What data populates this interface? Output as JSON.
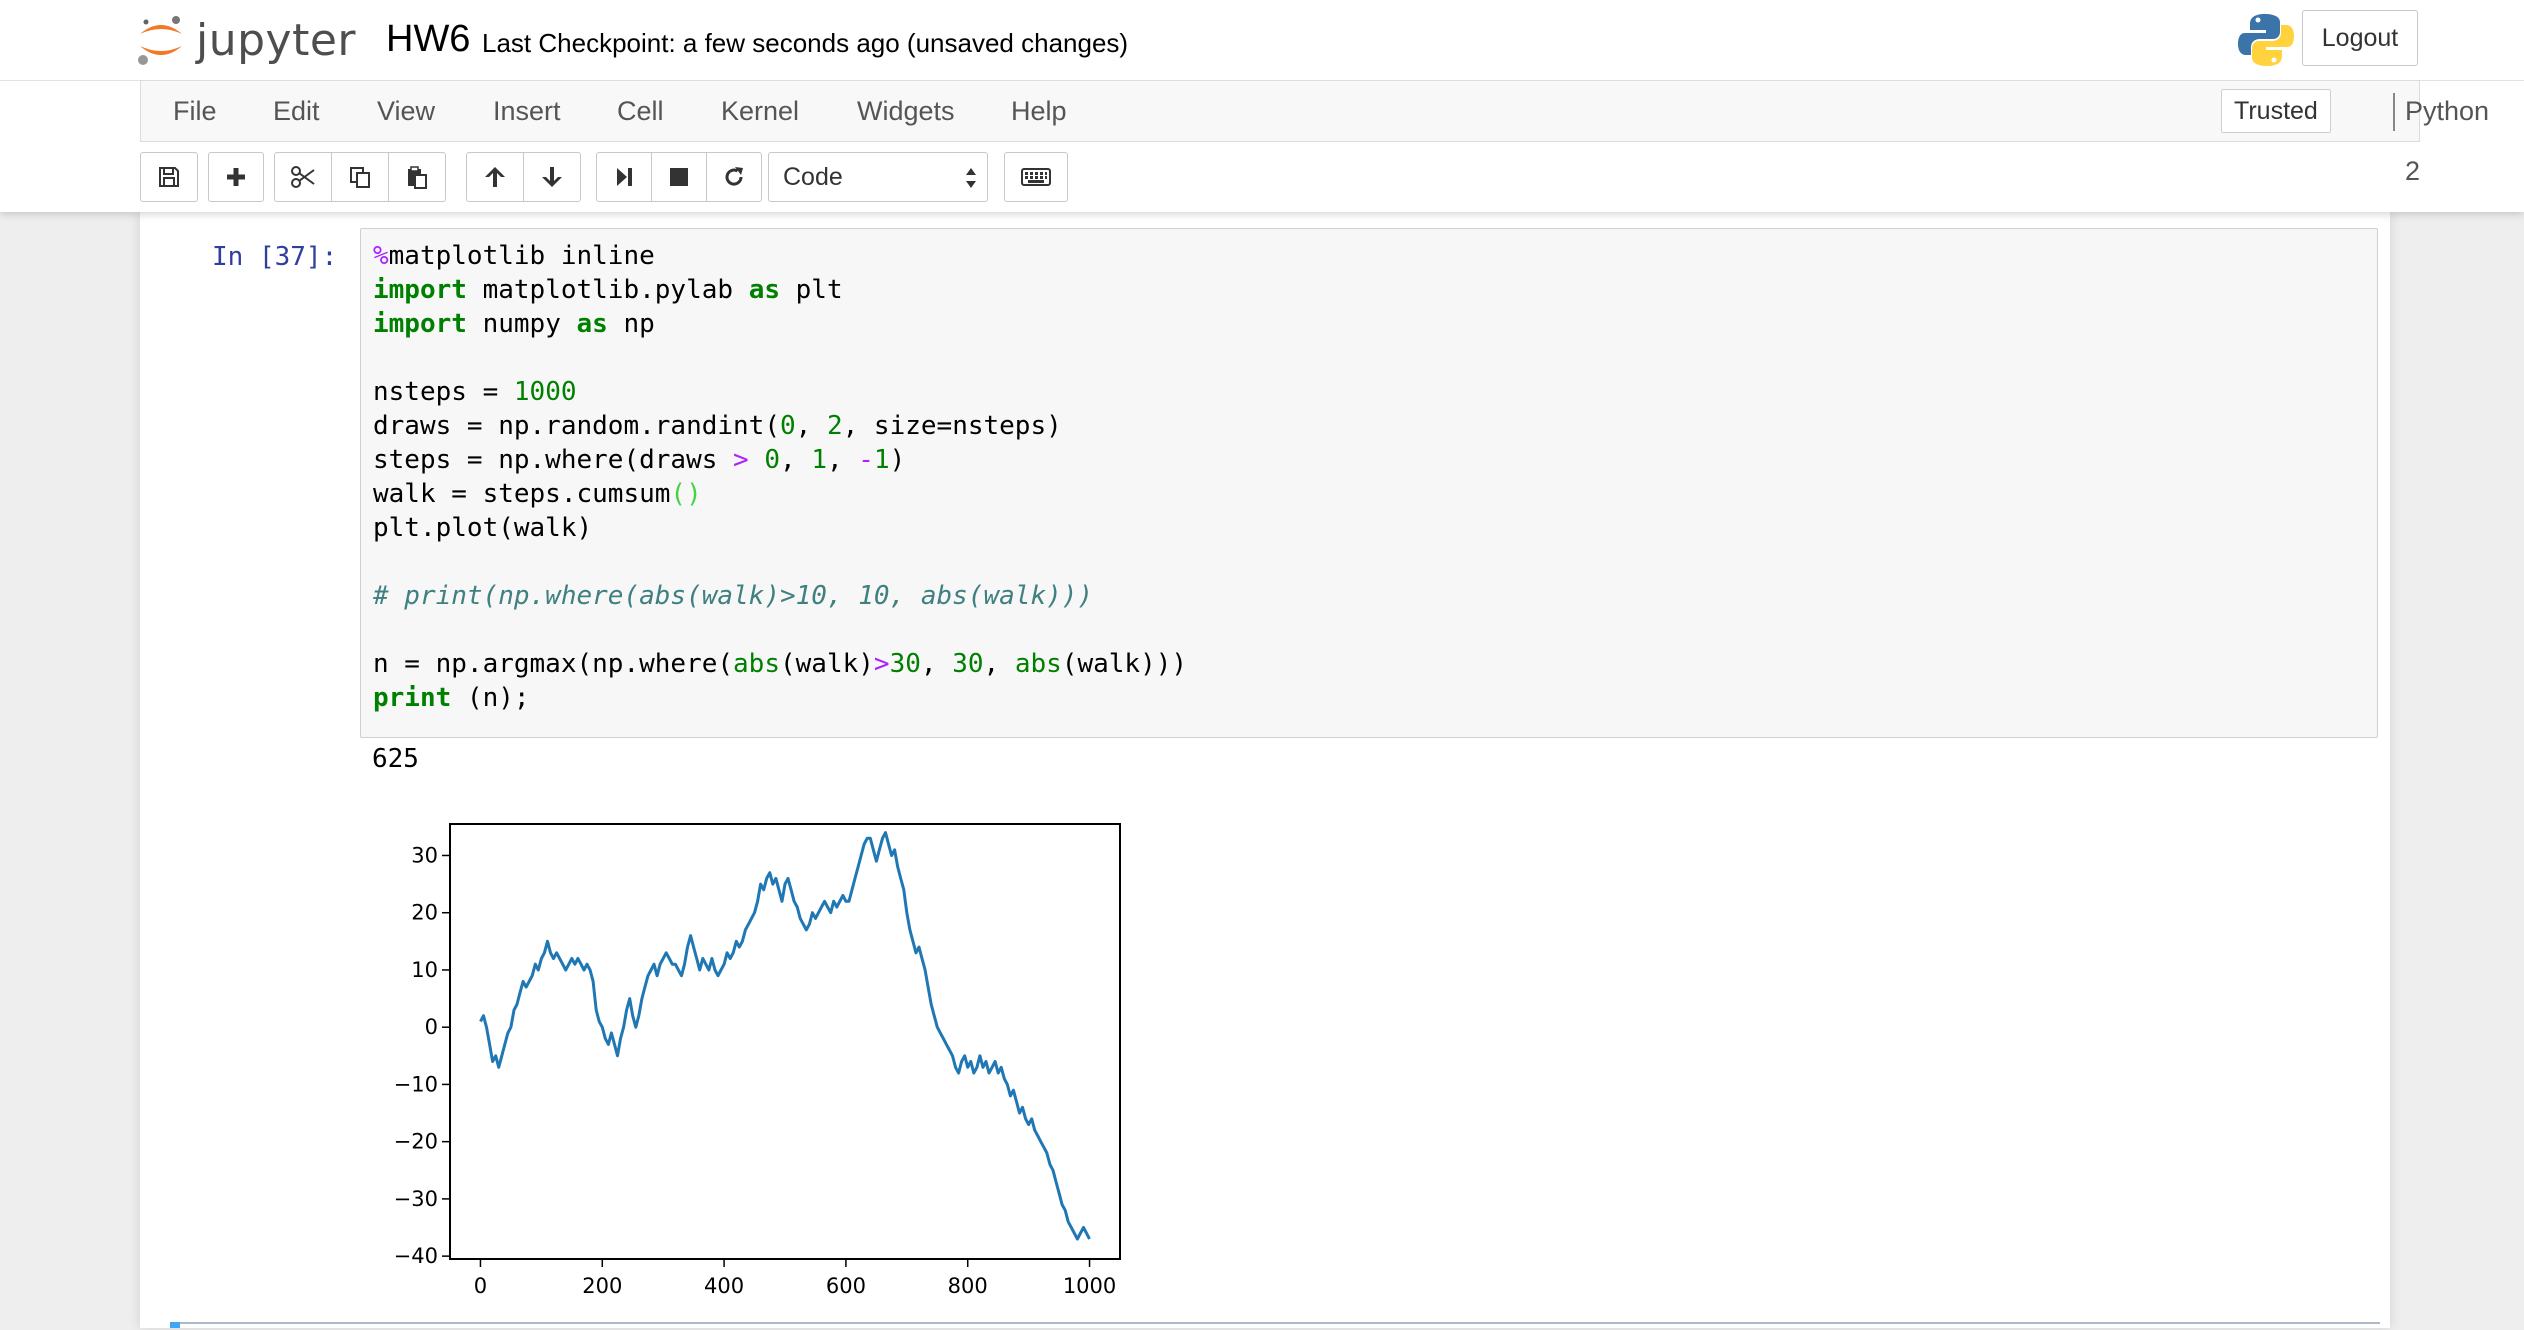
{
  "app": {
    "logo_text": "jupyter",
    "notebook_name": "HW6",
    "checkpoint": "Last Checkpoint: a few seconds ago (unsaved changes)",
    "logout_label": "Logout"
  },
  "menu": {
    "items": [
      "File",
      "Edit",
      "View",
      "Insert",
      "Cell",
      "Kernel",
      "Widgets",
      "Help"
    ],
    "trusted_label": "Trusted",
    "kernel_name": "Python 2"
  },
  "toolbar": {
    "cell_type": "Code"
  },
  "cell": {
    "prompt": "In [37]:",
    "code_lines": [
      "%matplotlib inline",
      "import matplotlib.pylab as plt",
      "import numpy as np",
      "",
      "nsteps = 1000",
      "draws = np.random.randint(0, 2, size=nsteps)",
      "steps = np.where(draws > 0, 1, -1)",
      "walk = steps.cumsum()",
      "plt.plot(walk)",
      "",
      "# print(np.where(abs(walk)>10, 10, abs(walk)))",
      "",
      "n = np.argmax(np.where(abs(walk)>30, 30, abs(walk)))",
      "print (n);"
    ],
    "output_text": "625"
  },
  "chart_data": {
    "type": "line",
    "title": "",
    "xlabel": "",
    "ylabel": "",
    "xlim": [
      -50,
      1050
    ],
    "ylim": [
      -40.5,
      35.5
    ],
    "xticks": [
      0,
      200,
      400,
      600,
      800,
      1000
    ],
    "xtick_labels": [
      "0",
      "200",
      "400",
      "600",
      "800",
      "1000"
    ],
    "yticks": [
      30,
      20,
      10,
      0,
      -10,
      -20,
      -30,
      -40
    ],
    "ytick_labels": [
      "30",
      "20",
      "10",
      "0",
      "−10",
      "−20",
      "−30",
      "−40"
    ],
    "grid": false,
    "series": [
      {
        "color": "#1f77b4",
        "points": [
          [
            0,
            1
          ],
          [
            5,
            2
          ],
          [
            10,
            0
          ],
          [
            15,
            -3
          ],
          [
            20,
            -6
          ],
          [
            25,
            -5
          ],
          [
            30,
            -7
          ],
          [
            35,
            -5
          ],
          [
            40,
            -3
          ],
          [
            45,
            -1
          ],
          [
            50,
            0
          ],
          [
            55,
            3
          ],
          [
            60,
            4
          ],
          [
            65,
            6
          ],
          [
            70,
            8
          ],
          [
            75,
            7
          ],
          [
            80,
            8
          ],
          [
            85,
            9
          ],
          [
            90,
            11
          ],
          [
            95,
            10
          ],
          [
            100,
            12
          ],
          [
            105,
            13
          ],
          [
            110,
            15
          ],
          [
            115,
            13
          ],
          [
            120,
            12
          ],
          [
            125,
            13
          ],
          [
            130,
            12
          ],
          [
            135,
            11
          ],
          [
            140,
            10
          ],
          [
            145,
            11
          ],
          [
            150,
            12
          ],
          [
            155,
            11
          ],
          [
            160,
            12
          ],
          [
            165,
            11
          ],
          [
            170,
            10
          ],
          [
            175,
            11
          ],
          [
            180,
            10
          ],
          [
            185,
            8
          ],
          [
            190,
            3
          ],
          [
            195,
            1
          ],
          [
            200,
            0
          ],
          [
            205,
            -2
          ],
          [
            210,
            -3
          ],
          [
            215,
            -1
          ],
          [
            220,
            -3
          ],
          [
            225,
            -5
          ],
          [
            230,
            -2
          ],
          [
            235,
            0
          ],
          [
            240,
            3
          ],
          [
            245,
            5
          ],
          [
            250,
            2
          ],
          [
            255,
            0
          ],
          [
            260,
            2
          ],
          [
            265,
            5
          ],
          [
            270,
            7
          ],
          [
            275,
            9
          ],
          [
            280,
            10
          ],
          [
            285,
            11
          ],
          [
            290,
            9
          ],
          [
            295,
            11
          ],
          [
            300,
            12
          ],
          [
            305,
            13
          ],
          [
            310,
            12
          ],
          [
            315,
            11
          ],
          [
            320,
            11
          ],
          [
            325,
            10
          ],
          [
            330,
            9
          ],
          [
            335,
            11
          ],
          [
            340,
            14
          ],
          [
            345,
            16
          ],
          [
            350,
            14
          ],
          [
            355,
            12
          ],
          [
            360,
            10
          ],
          [
            365,
            12
          ],
          [
            370,
            11
          ],
          [
            375,
            10
          ],
          [
            380,
            12
          ],
          [
            385,
            10
          ],
          [
            390,
            9
          ],
          [
            395,
            10
          ],
          [
            400,
            11
          ],
          [
            405,
            13
          ],
          [
            410,
            12
          ],
          [
            415,
            13
          ],
          [
            420,
            15
          ],
          [
            425,
            14
          ],
          [
            430,
            15
          ],
          [
            435,
            17
          ],
          [
            440,
            18
          ],
          [
            445,
            19
          ],
          [
            450,
            20
          ],
          [
            455,
            22
          ],
          [
            460,
            25
          ],
          [
            465,
            24
          ],
          [
            470,
            26
          ],
          [
            475,
            27
          ],
          [
            480,
            25
          ],
          [
            485,
            26
          ],
          [
            490,
            24
          ],
          [
            495,
            22
          ],
          [
            500,
            25
          ],
          [
            505,
            26
          ],
          [
            510,
            24
          ],
          [
            515,
            22
          ],
          [
            520,
            21
          ],
          [
            525,
            19
          ],
          [
            530,
            18
          ],
          [
            535,
            17
          ],
          [
            540,
            18
          ],
          [
            545,
            20
          ],
          [
            550,
            19
          ],
          [
            555,
            20
          ],
          [
            560,
            21
          ],
          [
            565,
            22
          ],
          [
            570,
            21
          ],
          [
            575,
            20
          ],
          [
            580,
            22
          ],
          [
            585,
            21
          ],
          [
            590,
            22
          ],
          [
            595,
            23
          ],
          [
            600,
            22
          ],
          [
            605,
            22
          ],
          [
            610,
            24
          ],
          [
            615,
            26
          ],
          [
            620,
            28
          ],
          [
            625,
            30
          ],
          [
            630,
            32
          ],
          [
            635,
            33
          ],
          [
            640,
            33
          ],
          [
            645,
            31
          ],
          [
            650,
            29
          ],
          [
            655,
            31
          ],
          [
            660,
            33
          ],
          [
            665,
            34
          ],
          [
            670,
            32
          ],
          [
            675,
            30
          ],
          [
            680,
            31
          ],
          [
            685,
            28
          ],
          [
            690,
            26
          ],
          [
            695,
            24
          ],
          [
            700,
            20
          ],
          [
            705,
            17
          ],
          [
            710,
            15
          ],
          [
            715,
            13
          ],
          [
            720,
            14
          ],
          [
            725,
            12
          ],
          [
            730,
            10
          ],
          [
            735,
            7
          ],
          [
            740,
            4
          ],
          [
            745,
            2
          ],
          [
            750,
            0
          ],
          [
            755,
            -1
          ],
          [
            760,
            -2
          ],
          [
            765,
            -3
          ],
          [
            770,
            -4
          ],
          [
            775,
            -5
          ],
          [
            780,
            -7
          ],
          [
            785,
            -8
          ],
          [
            790,
            -6
          ],
          [
            795,
            -5
          ],
          [
            800,
            -7
          ],
          [
            805,
            -6
          ],
          [
            810,
            -8
          ],
          [
            815,
            -7
          ],
          [
            820,
            -5
          ],
          [
            825,
            -7
          ],
          [
            830,
            -6
          ],
          [
            835,
            -8
          ],
          [
            840,
            -7
          ],
          [
            845,
            -6
          ],
          [
            850,
            -8
          ],
          [
            855,
            -7
          ],
          [
            860,
            -9
          ],
          [
            865,
            -10
          ],
          [
            870,
            -12
          ],
          [
            875,
            -11
          ],
          [
            880,
            -13
          ],
          [
            885,
            -15
          ],
          [
            890,
            -14
          ],
          [
            895,
            -16
          ],
          [
            900,
            -17
          ],
          [
            905,
            -16
          ],
          [
            910,
            -18
          ],
          [
            915,
            -19
          ],
          [
            920,
            -20
          ],
          [
            925,
            -21
          ],
          [
            930,
            -22
          ],
          [
            935,
            -24
          ],
          [
            940,
            -25
          ],
          [
            945,
            -27
          ],
          [
            950,
            -29
          ],
          [
            955,
            -31
          ],
          [
            960,
            -32
          ],
          [
            965,
            -34
          ],
          [
            970,
            -35
          ],
          [
            975,
            -36
          ],
          [
            980,
            -37
          ],
          [
            985,
            -36
          ],
          [
            990,
            -35
          ],
          [
            995,
            -36
          ],
          [
            1000,
            -37
          ]
        ]
      }
    ]
  }
}
